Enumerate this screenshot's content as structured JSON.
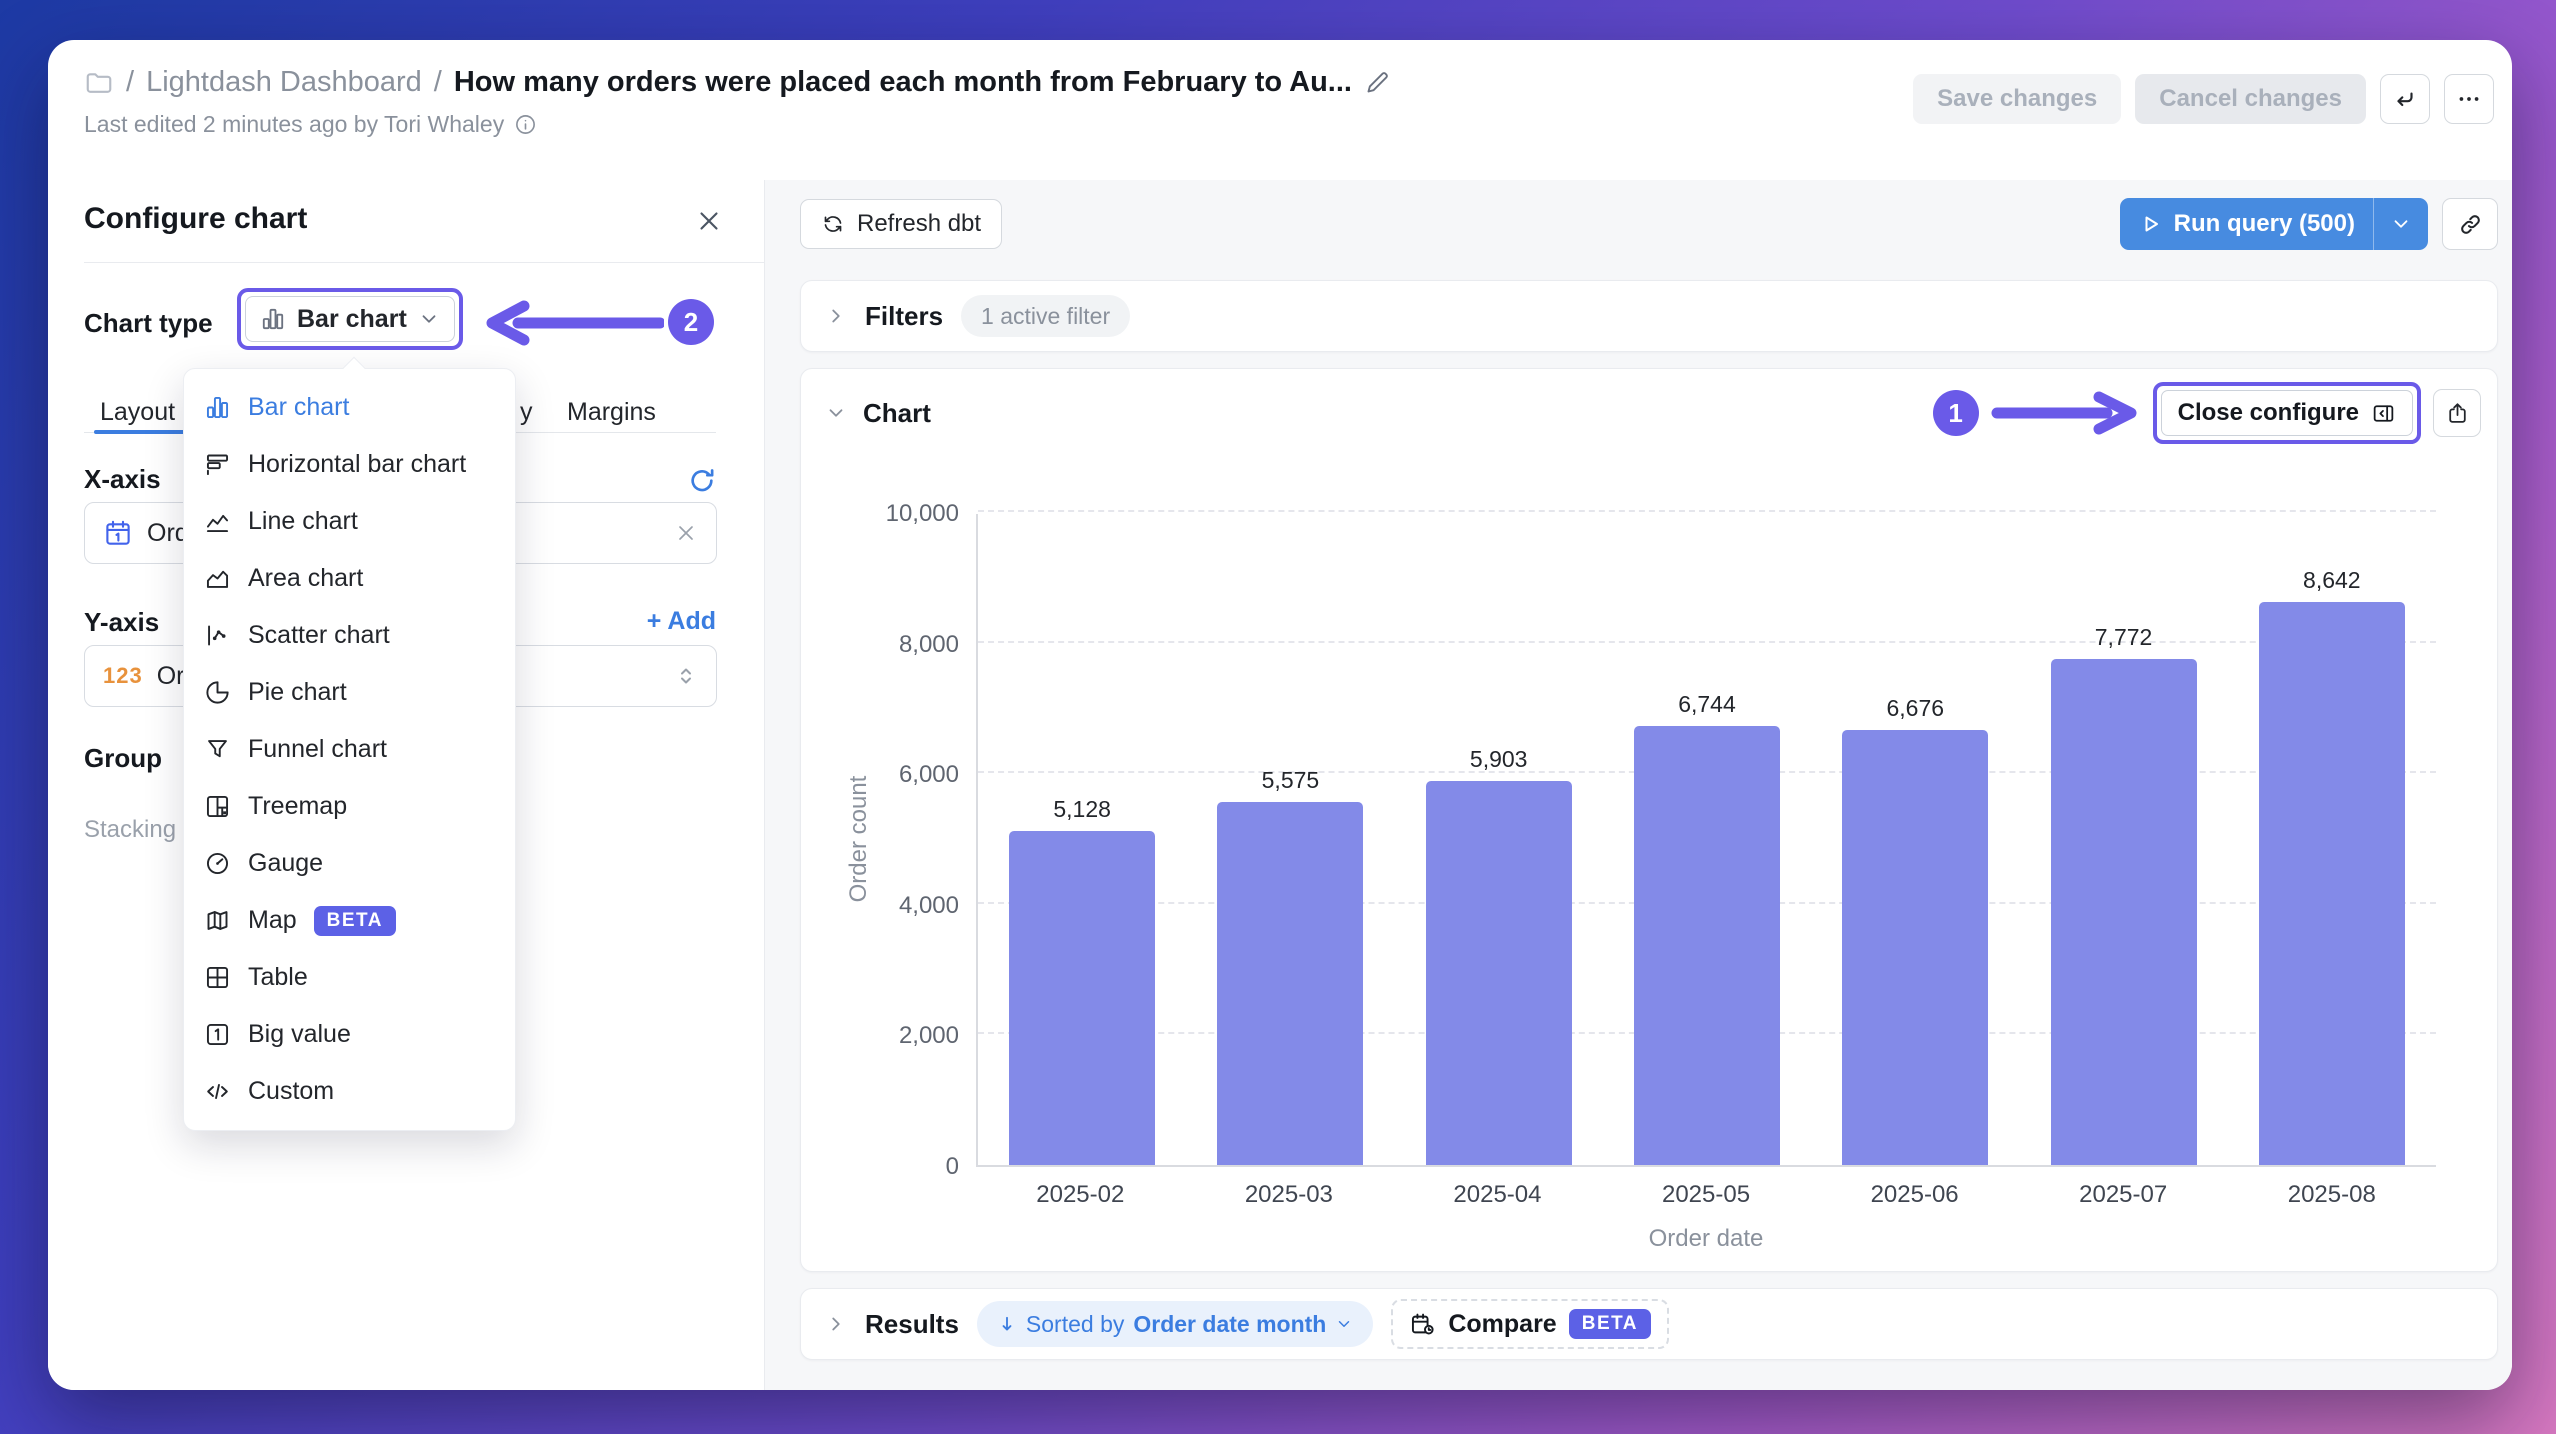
{
  "header": {
    "separator": "/",
    "breadcrumb_root": "Lightdash Dashboard",
    "title": "How many orders were placed each month from February to Au...",
    "subtitle": "Last edited 2 minutes ago by Tori Whaley",
    "save_label": "Save changes",
    "cancel_label": "Cancel changes"
  },
  "config_panel": {
    "title": "Configure chart",
    "chart_type_label": "Chart type",
    "chart_type_value": "Bar chart",
    "tabs": [
      {
        "label": "Layout",
        "active": true
      },
      {
        "label": "y",
        "partial": true
      },
      {
        "label": "Margins"
      }
    ],
    "x_axis_label": "X-axis",
    "x_axis_field": "Orde",
    "y_axis_label": "Y-axis",
    "y_axis_add": "+ Add",
    "y_axis_field": "Orde",
    "y_axis_field_icon_text": "123",
    "group_label": "Group",
    "stacking_label": "Stacking",
    "menu_items": [
      {
        "label": "Bar chart",
        "icon": "bar-chart-icon",
        "active": true
      },
      {
        "label": "Horizontal bar chart",
        "icon": "horizontal-bar-chart-icon"
      },
      {
        "label": "Line chart",
        "icon": "line-chart-icon"
      },
      {
        "label": "Area chart",
        "icon": "area-chart-icon"
      },
      {
        "label": "Scatter chart",
        "icon": "scatter-chart-icon"
      },
      {
        "label": "Pie chart",
        "icon": "pie-chart-icon"
      },
      {
        "label": "Funnel chart",
        "icon": "funnel-chart-icon"
      },
      {
        "label": "Treemap",
        "icon": "treemap-icon"
      },
      {
        "label": "Gauge",
        "icon": "gauge-icon"
      },
      {
        "label": "Map",
        "icon": "map-icon",
        "badge": "BETA"
      },
      {
        "label": "Table",
        "icon": "table-icon"
      },
      {
        "label": "Big value",
        "icon": "big-value-icon"
      },
      {
        "label": "Custom",
        "icon": "custom-code-icon"
      }
    ]
  },
  "annotations": {
    "step_1": "1",
    "step_2": "2"
  },
  "toolbar": {
    "refresh_dbt_label": "Refresh dbt",
    "run_query_label": "Run query (500)"
  },
  "filters_section": {
    "title": "Filters",
    "badge": "1 active filter"
  },
  "chart_section": {
    "title": "Chart",
    "close_configure_label": "Close configure"
  },
  "results_section": {
    "title": "Results",
    "sorted_prefix": "Sorted by",
    "sorted_field": "Order date month",
    "compare_label": "Compare",
    "beta_badge": "BETA"
  },
  "chart_data": {
    "type": "bar",
    "title": "",
    "categories": [
      "2025-02",
      "2025-03",
      "2025-04",
      "2025-05",
      "2025-06",
      "2025-07",
      "2025-08"
    ],
    "values": [
      5128,
      5575,
      5903,
      6744,
      6676,
      7772,
      8642
    ],
    "value_labels": [
      "5,128",
      "5,575",
      "5,903",
      "6,744",
      "6,676",
      "7,772",
      "8,642"
    ],
    "xlabel": "Order date",
    "ylabel": "Order count",
    "ylim": [
      0,
      10000
    ],
    "yticks": [
      0,
      2000,
      4000,
      6000,
      8000,
      10000
    ],
    "ytick_labels": [
      "0",
      "2,000",
      "4,000",
      "6,000",
      "8,000",
      "10,000"
    ],
    "bar_color": "#838ae8",
    "grid": "dashed horizontal",
    "legend": "none"
  },
  "colors": {
    "annotation_purple": "#6a5ae8",
    "primary_blue_button": "#478be0",
    "link_blue": "#3b7de0",
    "beta_badge_bg": "#5c61e6",
    "bar_fill": "#838ae8"
  }
}
